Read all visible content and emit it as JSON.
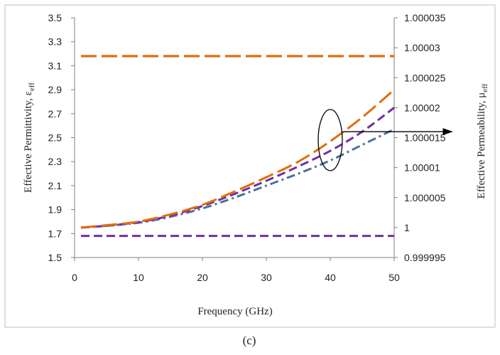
{
  "chart_data": {
    "type": "line",
    "caption": "(c)",
    "xlabel": "Frequency (GHz)",
    "ylabel_left": {
      "text": "Effective Permittivity, ε",
      "subscript": "eff"
    },
    "ylabel_right": {
      "text": "Effective Permeability, μ",
      "subscript": "eff"
    },
    "xlim": [
      0,
      50
    ],
    "x_ticks": [
      "0",
      "10",
      "20",
      "30",
      "40",
      "50"
    ],
    "ylim_left": [
      1.5,
      3.5
    ],
    "y_left_ticks": [
      "1.5",
      "1.7",
      "1.9",
      "2.1",
      "2.3",
      "2.5",
      "2.7",
      "2.9",
      "3.1",
      "3.3",
      "3.5"
    ],
    "ylim_right": [
      0.999995,
      1.000035
    ],
    "y_right_ticks": [
      "0.999995",
      "1",
      "1.000005",
      "1.00001",
      "1.000015",
      "1.00002",
      "1.000025",
      "1.00003",
      "1.000035"
    ],
    "grid": false,
    "legend": "none",
    "series": [
      {
        "axis": "left",
        "color": "#4f6f9a",
        "dash": "dash-dot",
        "x": [
          1,
          5,
          10,
          15,
          20,
          25,
          30,
          35,
          40,
          45,
          50
        ],
        "y": [
          1.75,
          1.765,
          1.79,
          1.84,
          1.91,
          2.0,
          2.1,
          2.2,
          2.31,
          2.44,
          2.57
        ]
      },
      {
        "axis": "left",
        "color": "#7030a0",
        "dash": "dash",
        "x": [
          1,
          5,
          10,
          15,
          20,
          25,
          30,
          35,
          40,
          45,
          50
        ],
        "y": [
          1.75,
          1.765,
          1.795,
          1.85,
          1.93,
          2.03,
          2.14,
          2.26,
          2.39,
          2.55,
          2.75
        ]
      },
      {
        "axis": "left",
        "color": "#e46c0a",
        "dash": "long-dash",
        "x": [
          1,
          5,
          10,
          15,
          20,
          25,
          30,
          35,
          40,
          45,
          50
        ],
        "y": [
          1.75,
          1.77,
          1.8,
          1.86,
          1.94,
          2.05,
          2.17,
          2.3,
          2.47,
          2.67,
          2.9
        ]
      },
      {
        "axis": "left",
        "color": "#7030a0",
        "dash": "dash",
        "x": [
          1,
          50
        ],
        "y": [
          1.68,
          1.68
        ]
      },
      {
        "axis": "left",
        "color": "#5b7a3a",
        "dash": "long-dash",
        "x": [
          1,
          50
        ],
        "y": [
          3.18,
          3.18
        ]
      },
      {
        "axis": "left",
        "color": "#e46c0a",
        "dash": "long-dash",
        "x": [
          1,
          50
        ],
        "y": [
          3.18,
          3.18
        ]
      }
    ],
    "annotation": {
      "ellipse_center": [
        40,
        2.48
      ],
      "arrow_from": [
        42,
        2.55
      ],
      "arrow_to": [
        49.5,
        2.55
      ]
    }
  }
}
